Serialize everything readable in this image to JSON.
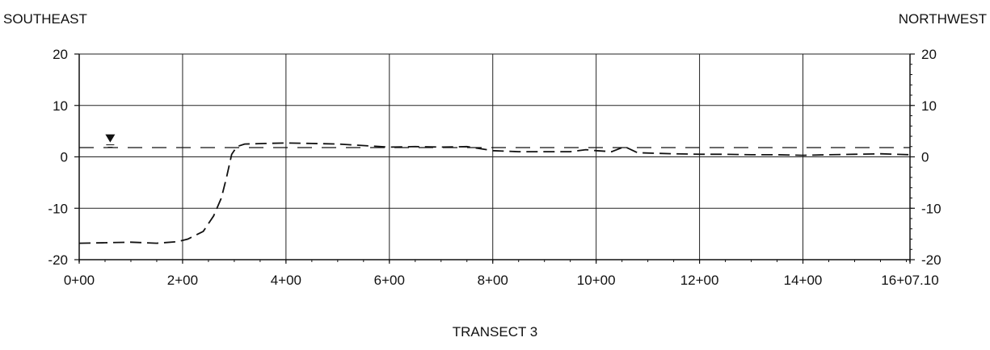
{
  "labels": {
    "left": "SOUTHEAST",
    "right": "NORTHWEST",
    "title": "TRANSECT 3"
  },
  "chart_data": {
    "type": "line",
    "title": "TRANSECT 3",
    "xlabel": "",
    "ylabel": "",
    "xlim": [
      0,
      16.071
    ],
    "ylim": [
      -20,
      20
    ],
    "x_tick_values": [
      0,
      2,
      4,
      6,
      8,
      10,
      12,
      14,
      16.071
    ],
    "x_tick_labels": [
      "0+00",
      "2+00",
      "4+00",
      "6+00",
      "8+00",
      "10+00",
      "12+00",
      "14+00",
      "16+07.10"
    ],
    "y_ticks": [
      20,
      10,
      0,
      -10,
      -20
    ],
    "grid": true,
    "secondary_y_axis": true,
    "water_level_symbol": {
      "x": 0.6,
      "y": 2.5
    },
    "series": [
      {
        "style": "dashed-long",
        "points": [
          [
            0,
            1.8
          ],
          [
            16.071,
            1.8
          ]
        ]
      },
      {
        "style": "dashed",
        "points": [
          [
            0,
            -16.8
          ],
          [
            0.5,
            -16.7
          ],
          [
            1.0,
            -16.6
          ],
          [
            1.5,
            -16.8
          ],
          [
            1.9,
            -16.5
          ],
          [
            2.1,
            -16.0
          ],
          [
            2.4,
            -14.5
          ],
          [
            2.6,
            -11.5
          ],
          [
            2.75,
            -8.0
          ],
          [
            2.85,
            -4.0
          ],
          [
            2.95,
            0.5
          ],
          [
            3.05,
            2.0
          ],
          [
            3.2,
            2.5
          ],
          [
            3.6,
            2.6
          ],
          [
            4.0,
            2.7
          ],
          [
            4.5,
            2.6
          ],
          [
            5.0,
            2.5
          ],
          [
            5.5,
            2.2
          ],
          [
            6.0,
            1.9
          ],
          [
            6.5,
            2.0
          ],
          [
            7.0,
            1.9
          ],
          [
            7.5,
            2.0
          ],
          [
            8.0,
            1.2
          ],
          [
            8.5,
            1.0
          ],
          [
            9.0,
            1.0
          ],
          [
            9.5,
            1.0
          ],
          [
            9.8,
            1.4
          ],
          [
            10.0,
            1.2
          ],
          [
            10.3,
            1.0
          ],
          [
            10.55,
            2.0
          ],
          [
            10.8,
            0.8
          ],
          [
            11.5,
            0.6
          ],
          [
            12.0,
            0.5
          ],
          [
            12.5,
            0.5
          ],
          [
            13.0,
            0.4
          ],
          [
            13.5,
            0.4
          ],
          [
            14.0,
            0.3
          ],
          [
            14.5,
            0.4
          ],
          [
            15.0,
            0.5
          ],
          [
            15.5,
            0.6
          ],
          [
            16.071,
            0.4
          ]
        ]
      }
    ]
  }
}
